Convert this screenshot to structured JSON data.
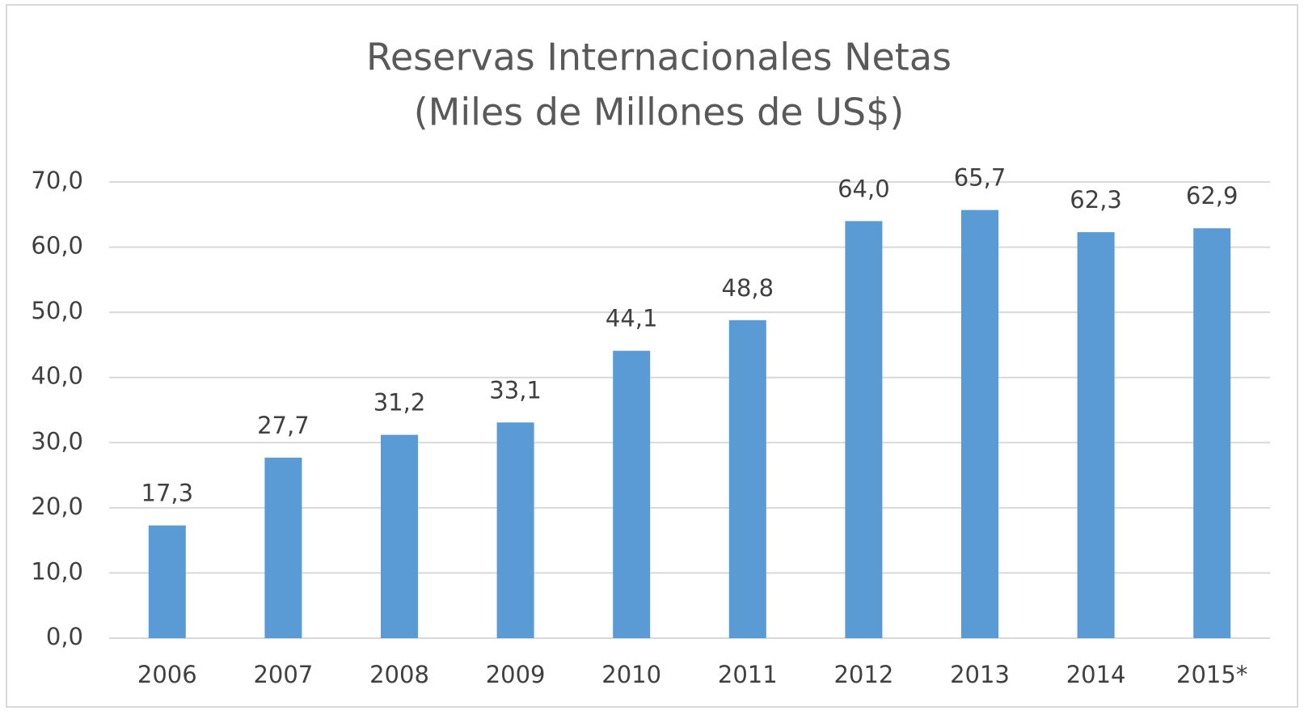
{
  "chart_data": {
    "type": "bar",
    "title": "Reservas Internacionales Netas",
    "subtitle": "(Miles de Millones de US$)",
    "categories": [
      "2006",
      "2007",
      "2008",
      "2009",
      "2010",
      "2011",
      "2012",
      "2013",
      "2014",
      "2015*"
    ],
    "values": [
      17.3,
      27.7,
      31.2,
      33.1,
      44.1,
      48.8,
      64.0,
      65.7,
      62.3,
      62.9
    ],
    "value_labels": [
      "17,3",
      "27,7",
      "31,2",
      "33,1",
      "44,1",
      "48,8",
      "64,0",
      "65,7",
      "62,3",
      "62,9"
    ],
    "color": "#5b9bd5",
    "ylim": [
      0,
      70
    ],
    "yticks": [
      {
        "value": 0,
        "label": "0,0"
      },
      {
        "value": 10,
        "label": "10,0"
      },
      {
        "value": 20,
        "label": "20,0"
      },
      {
        "value": 30,
        "label": "30,0"
      },
      {
        "value": 40,
        "label": "40,0"
      },
      {
        "value": 50,
        "label": "50,0"
      },
      {
        "value": 60,
        "label": "60,0"
      },
      {
        "value": 70,
        "label": "70,0"
      }
    ],
    "grid": true
  }
}
